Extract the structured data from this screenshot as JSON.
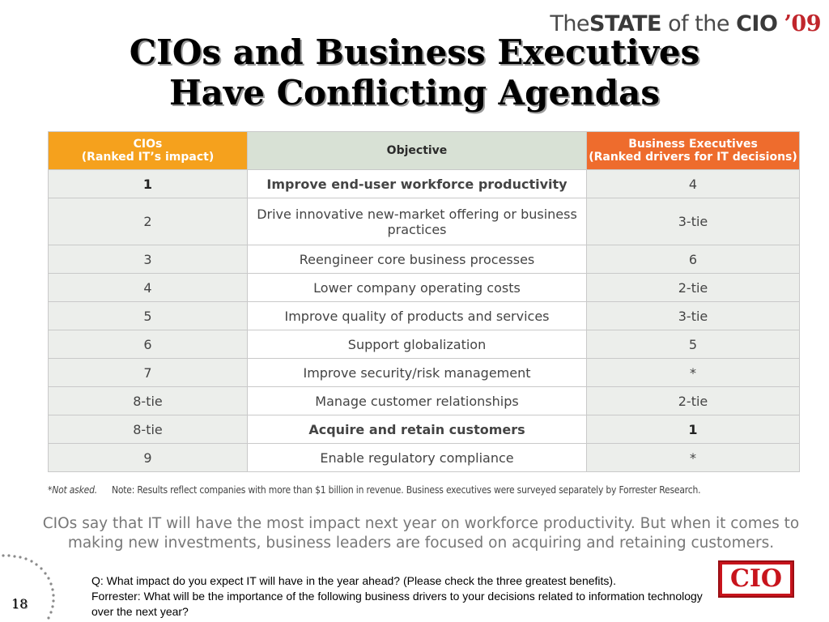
{
  "brand": {
    "prefix": "The",
    "state": "STATE",
    "of_the": "of the",
    "cio": "CIO",
    "year": "’09"
  },
  "title_line1": "CIOs and Business Executives",
  "title_line2": "Have Conflicting Agendas",
  "table": {
    "headers": {
      "cio_line1": "CIOs",
      "cio_line2": "(Ranked IT’s impact)",
      "objective": "Objective",
      "biz_line1": "Business Executives",
      "biz_line2": "(Ranked drivers for IT decisions)"
    },
    "rows": [
      {
        "cio": "1",
        "objective": "Improve end-user workforce productivity",
        "biz": "4"
      },
      {
        "cio": "2",
        "objective": "Drive innovative new-market offering or business practices",
        "biz": "3-tie"
      },
      {
        "cio": "3",
        "objective": "Reengineer core business processes",
        "biz": "6"
      },
      {
        "cio": "4",
        "objective": "Lower company operating costs",
        "biz": "2-tie"
      },
      {
        "cio": "5",
        "objective": "Improve quality of products and services",
        "biz": "3-tie"
      },
      {
        "cio": "6",
        "objective": "Support globalization",
        "biz": "5"
      },
      {
        "cio": "7",
        "objective": "Improve security/risk management",
        "biz": "*"
      },
      {
        "cio": "8-tie",
        "objective": "Manage customer relationships",
        "biz": "2-tie"
      },
      {
        "cio": "8-tie",
        "objective": "Acquire and retain customers",
        "biz": "1"
      },
      {
        "cio": "9",
        "objective": "Enable regulatory compliance",
        "biz": "*"
      }
    ]
  },
  "footnote": {
    "asterisk": "*Not asked.",
    "note": "Note: Results reflect companies with more than $1 billion in revenue. Business executives were surveyed separately by Forrester Research."
  },
  "summary": "CIOs say that IT will have the most impact next year on workforce productivity. But when it comes to making new investments, business leaders are focused on acquiring and retaining customers.",
  "question_line1": "Q: What impact do you expect IT will have in the year ahead? (Please check the three greatest benefits).",
  "question_line2": "Forrester: What will be the importance of the following business drivers to your decisions related to information technology over the next year?",
  "logo_text": "CIO",
  "page_number": "18"
}
